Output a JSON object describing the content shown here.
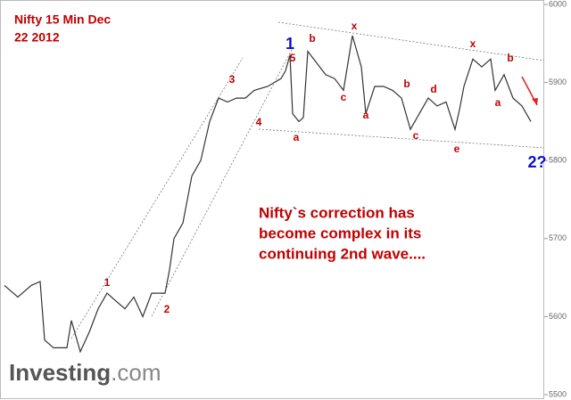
{
  "chart_data": {
    "type": "line",
    "title_lines": [
      "Nifty 15 Min Dec",
      "22 2012"
    ],
    "commentary": [
      "Nifty`s correction has",
      "become complex in its",
      "continuing 2nd wave...."
    ],
    "logo": {
      "brand": "Investing",
      "suffix": ".com"
    },
    "x": [
      5,
      20,
      35,
      45,
      50,
      60,
      75,
      80,
      90,
      100,
      110,
      120,
      130,
      140,
      150,
      160,
      170,
      185,
      190,
      195,
      205,
      215,
      225,
      235,
      245,
      255,
      265,
      275,
      285,
      300,
      315,
      320,
      325,
      328,
      335,
      340,
      345,
      355,
      365,
      375,
      385,
      395,
      405,
      410,
      420,
      430,
      440,
      450,
      460,
      470,
      480,
      490,
      500,
      510,
      515,
      520,
      530,
      540,
      550,
      555,
      565,
      575,
      585,
      595
    ],
    "values": [
      5640,
      5625,
      5640,
      5645,
      5570,
      5560,
      5560,
      5595,
      5555,
      5580,
      5610,
      5630,
      5620,
      5610,
      5625,
      5600,
      5630,
      5630,
      5660,
      5700,
      5720,
      5780,
      5800,
      5850,
      5880,
      5875,
      5880,
      5880,
      5890,
      5895,
      5905,
      5915,
      5935,
      5860,
      5850,
      5855,
      5940,
      5925,
      5910,
      5905,
      5890,
      5960,
      5920,
      5860,
      5895,
      5895,
      5890,
      5880,
      5840,
      5860,
      5880,
      5870,
      5875,
      5840,
      5865,
      5895,
      5930,
      5920,
      5930,
      5890,
      5910,
      5880,
      5870,
      5850
    ],
    "color": "#333333",
    "xlim": [
      0,
      610
    ],
    "ylim": [
      5500,
      6000
    ],
    "yticks": [
      5500,
      5600,
      5700,
      5800,
      5900,
      6000
    ],
    "annotations": [
      "1",
      "5",
      "b",
      "x",
      "x",
      "b",
      "3",
      "4",
      "a",
      "c",
      "b",
      "d",
      "a",
      "c",
      "e",
      "a",
      "1",
      "2",
      "2?"
    ]
  }
}
